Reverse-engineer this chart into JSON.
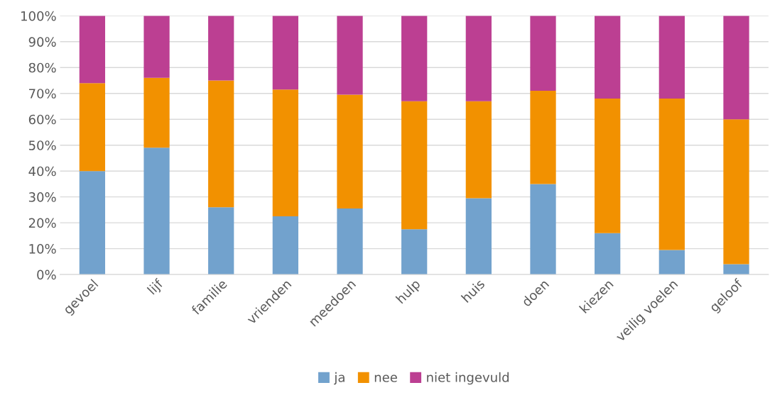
{
  "chart_data": {
    "type": "bar",
    "stacked": true,
    "categories": [
      "gevoel",
      "lijf",
      "familie",
      "vrienden",
      "meedoen",
      "hulp",
      "huis",
      "doen",
      "kiezen",
      "veilig voelen",
      "geloof"
    ],
    "series": [
      {
        "name": "ja",
        "color": "#72a2cd",
        "values": [
          40,
          49,
          26,
          22.5,
          25.5,
          17.5,
          29.5,
          35,
          16,
          9.5,
          4
        ]
      },
      {
        "name": "nee",
        "color": "#f29100",
        "values": [
          34,
          27,
          49,
          49,
          44,
          49.5,
          37.5,
          36,
          52,
          58.5,
          56
        ]
      },
      {
        "name": "niet ingevuld",
        "color": "#bc3f92",
        "values": [
          26,
          24,
          25,
          28.5,
          30.5,
          33,
          33,
          29,
          32,
          32,
          40
        ]
      }
    ],
    "ylim": [
      0,
      100
    ],
    "yticks": [
      {
        "value": 0,
        "label": "0%"
      },
      {
        "value": 10,
        "label": "10%"
      },
      {
        "value": 20,
        "label": "20%"
      },
      {
        "value": 30,
        "label": "30%"
      },
      {
        "value": 40,
        "label": "40%"
      },
      {
        "value": 50,
        "label": "50%"
      },
      {
        "value": 60,
        "label": "60%"
      },
      {
        "value": 70,
        "label": "70%"
      },
      {
        "value": 80,
        "label": "80%"
      },
      {
        "value": 90,
        "label": "90%"
      },
      {
        "value": 100,
        "label": "100%"
      }
    ],
    "grid": "y",
    "legend": "bottom"
  }
}
